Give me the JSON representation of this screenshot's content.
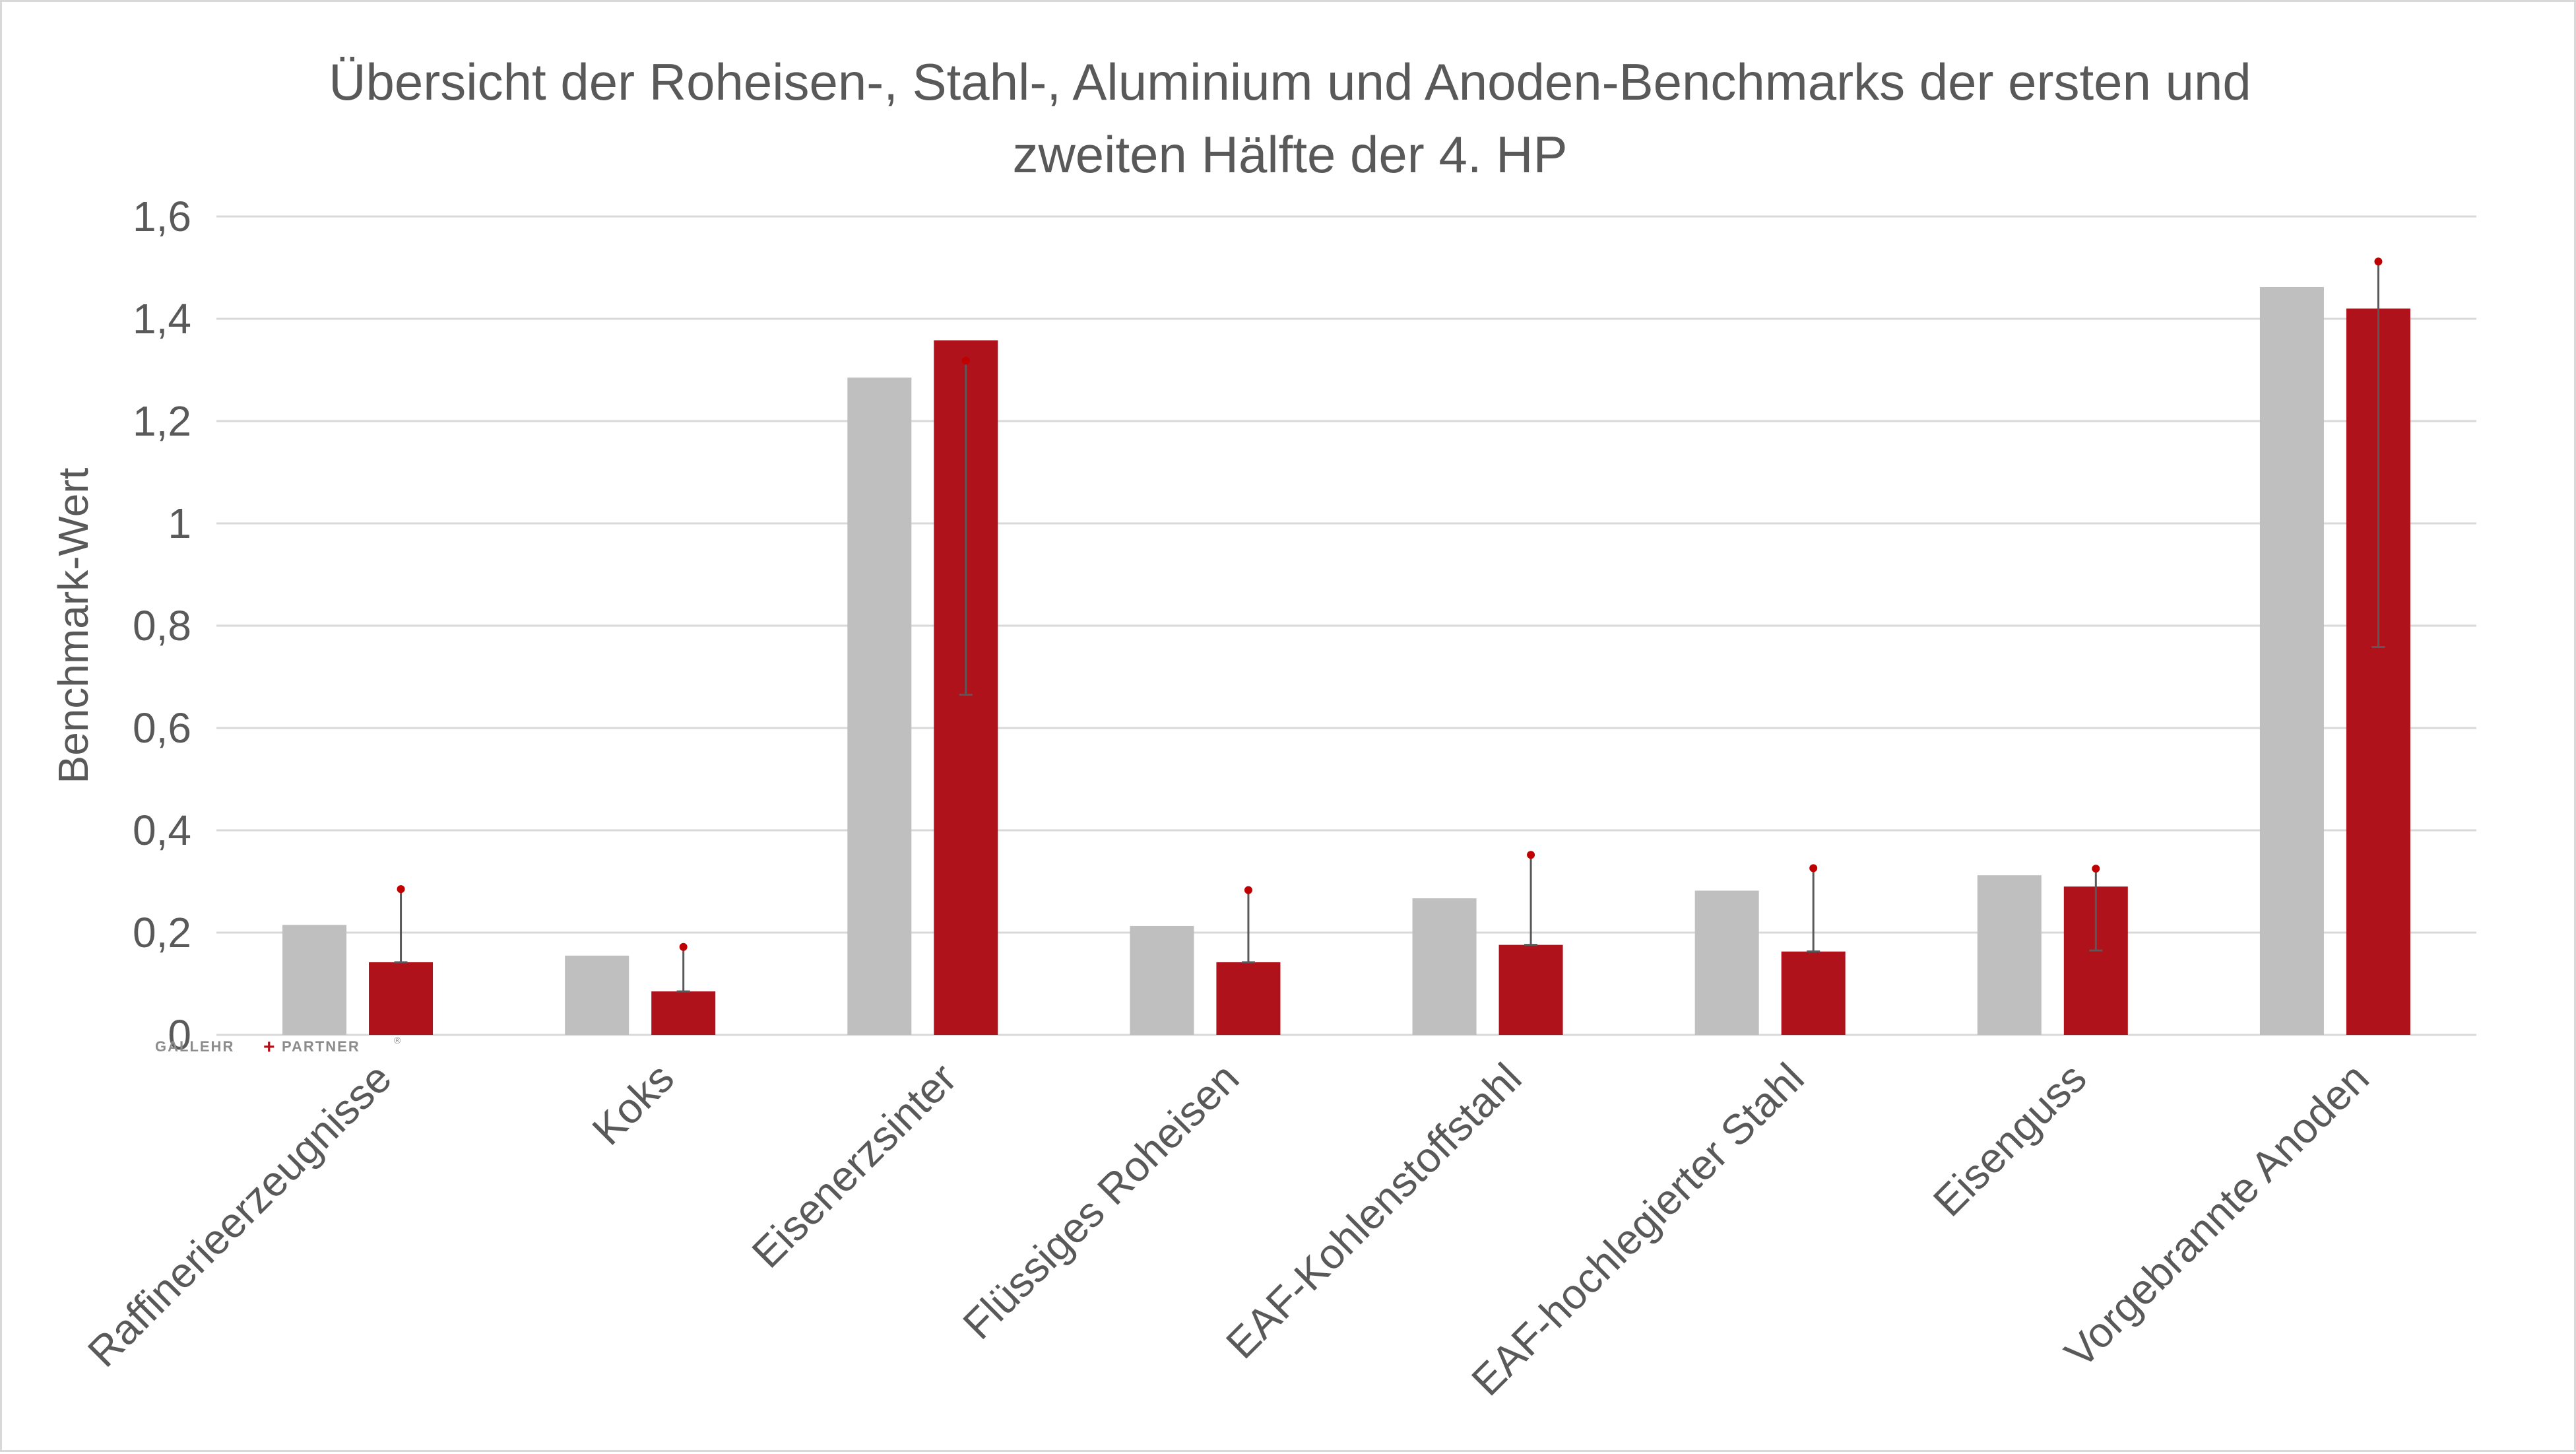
{
  "chart_data": {
    "type": "bar",
    "title_line1": "Übersicht der Roheisen-, Stahl-, Aluminium und Anoden-Benchmarks der ersten und",
    "title_line2": "zweiten Hälfte der 4. HP",
    "ylabel": "Benchmark-Wert",
    "xlabel": "",
    "ylim": [
      0,
      1.6
    ],
    "yticks": [
      0,
      0.2,
      0.4,
      0.6,
      0.8,
      1,
      1.2,
      1.4,
      1.6
    ],
    "ytick_labels": [
      "0",
      "0,2",
      "0,4",
      "0,6",
      "0,8",
      "1",
      "1,2",
      "1,4",
      "1,6"
    ],
    "grid": true,
    "legend": "none",
    "categories": [
      "Raffinerieerzeugnisse",
      "Koks",
      "Eisenerzsinter",
      "Flüssiges Roheisen",
      "EAF-Kohlenstoffstahl",
      "EAF-hochlegierter Stahl",
      "Eisenguss",
      "Vorgebrannte Anoden"
    ],
    "series": [
      {
        "color": "#bfbfbf",
        "values": [
          0.215,
          0.155,
          1.285,
          0.213,
          0.267,
          0.282,
          0.312,
          1.462
        ]
      },
      {
        "color": "#b0121b",
        "values": [
          0.142,
          0.085,
          1.358,
          0.142,
          0.176,
          0.163,
          0.29,
          1.42
        ],
        "error_low": [
          0.142,
          0.085,
          0.665,
          0.142,
          0.176,
          0.163,
          0.165,
          0.758
        ],
        "error_high": [
          0.285,
          0.172,
          1.318,
          0.283,
          0.352,
          0.326,
          0.325,
          1.512
        ],
        "error_marker_color": "#c00000",
        "error_line_color": "#595959"
      }
    ]
  },
  "logo": {
    "left_word": "GALLEHR",
    "plus": "+",
    "right_word": "PARTNER",
    "reg": "®"
  }
}
